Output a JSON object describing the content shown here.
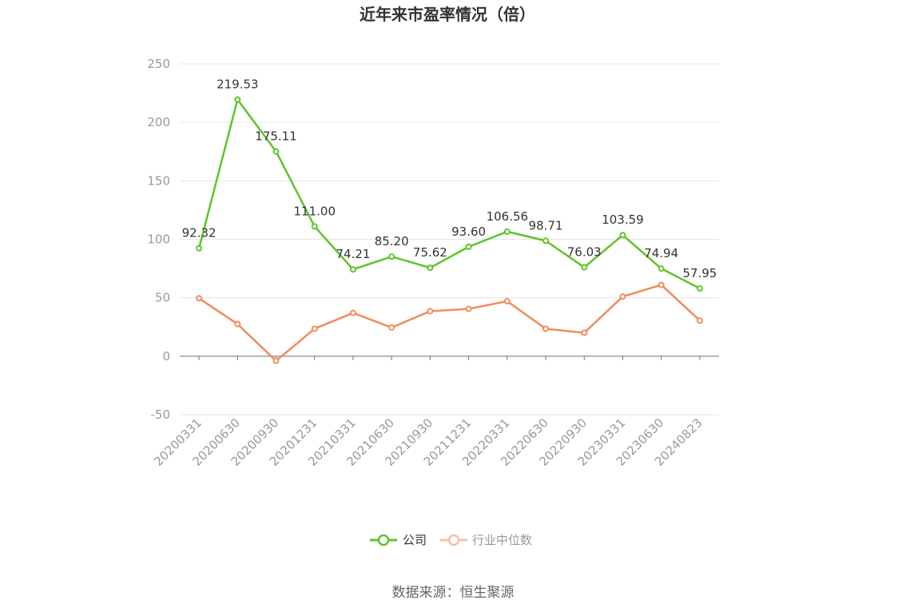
{
  "title": "近年来市盈率情况（倍）",
  "source": "数据来源：恒生聚源",
  "chart_data": {
    "type": "line",
    "title": "近年来市盈率情况（倍）",
    "xlabel": "",
    "ylabel": "",
    "ylim": [
      -50,
      250
    ],
    "yticks": [
      -50,
      0,
      50,
      100,
      150,
      200,
      250
    ],
    "grid": true,
    "legend_position": "bottom",
    "categories": [
      "20200331",
      "20200630",
      "20200930",
      "20201231",
      "20210331",
      "20210630",
      "20210930",
      "20211231",
      "20220331",
      "20220630",
      "20220930",
      "20230331",
      "20230630",
      "20240823"
    ],
    "series": [
      {
        "name": "公司",
        "color": "#5ec42b",
        "values": [
          92.32,
          219.53,
          175.11,
          111.0,
          74.21,
          85.2,
          75.62,
          93.6,
          106.56,
          98.71,
          76.03,
          103.59,
          74.94,
          57.95
        ],
        "labels": [
          "92.32",
          "219.53",
          "175.11",
          "111.00",
          "74.21",
          "85.20",
          "75.62",
          "93.60",
          "106.56",
          "98.71",
          "76.03",
          "103.59",
          "74.94",
          "57.95"
        ]
      },
      {
        "name": "行业中位数",
        "color": "#f08c5a",
        "values": [
          49.5,
          27.5,
          -4.0,
          23.5,
          37.0,
          24.5,
          38.5,
          40.5,
          47.0,
          23.5,
          20.0,
          51.0,
          61.0,
          30.5
        ]
      }
    ]
  }
}
